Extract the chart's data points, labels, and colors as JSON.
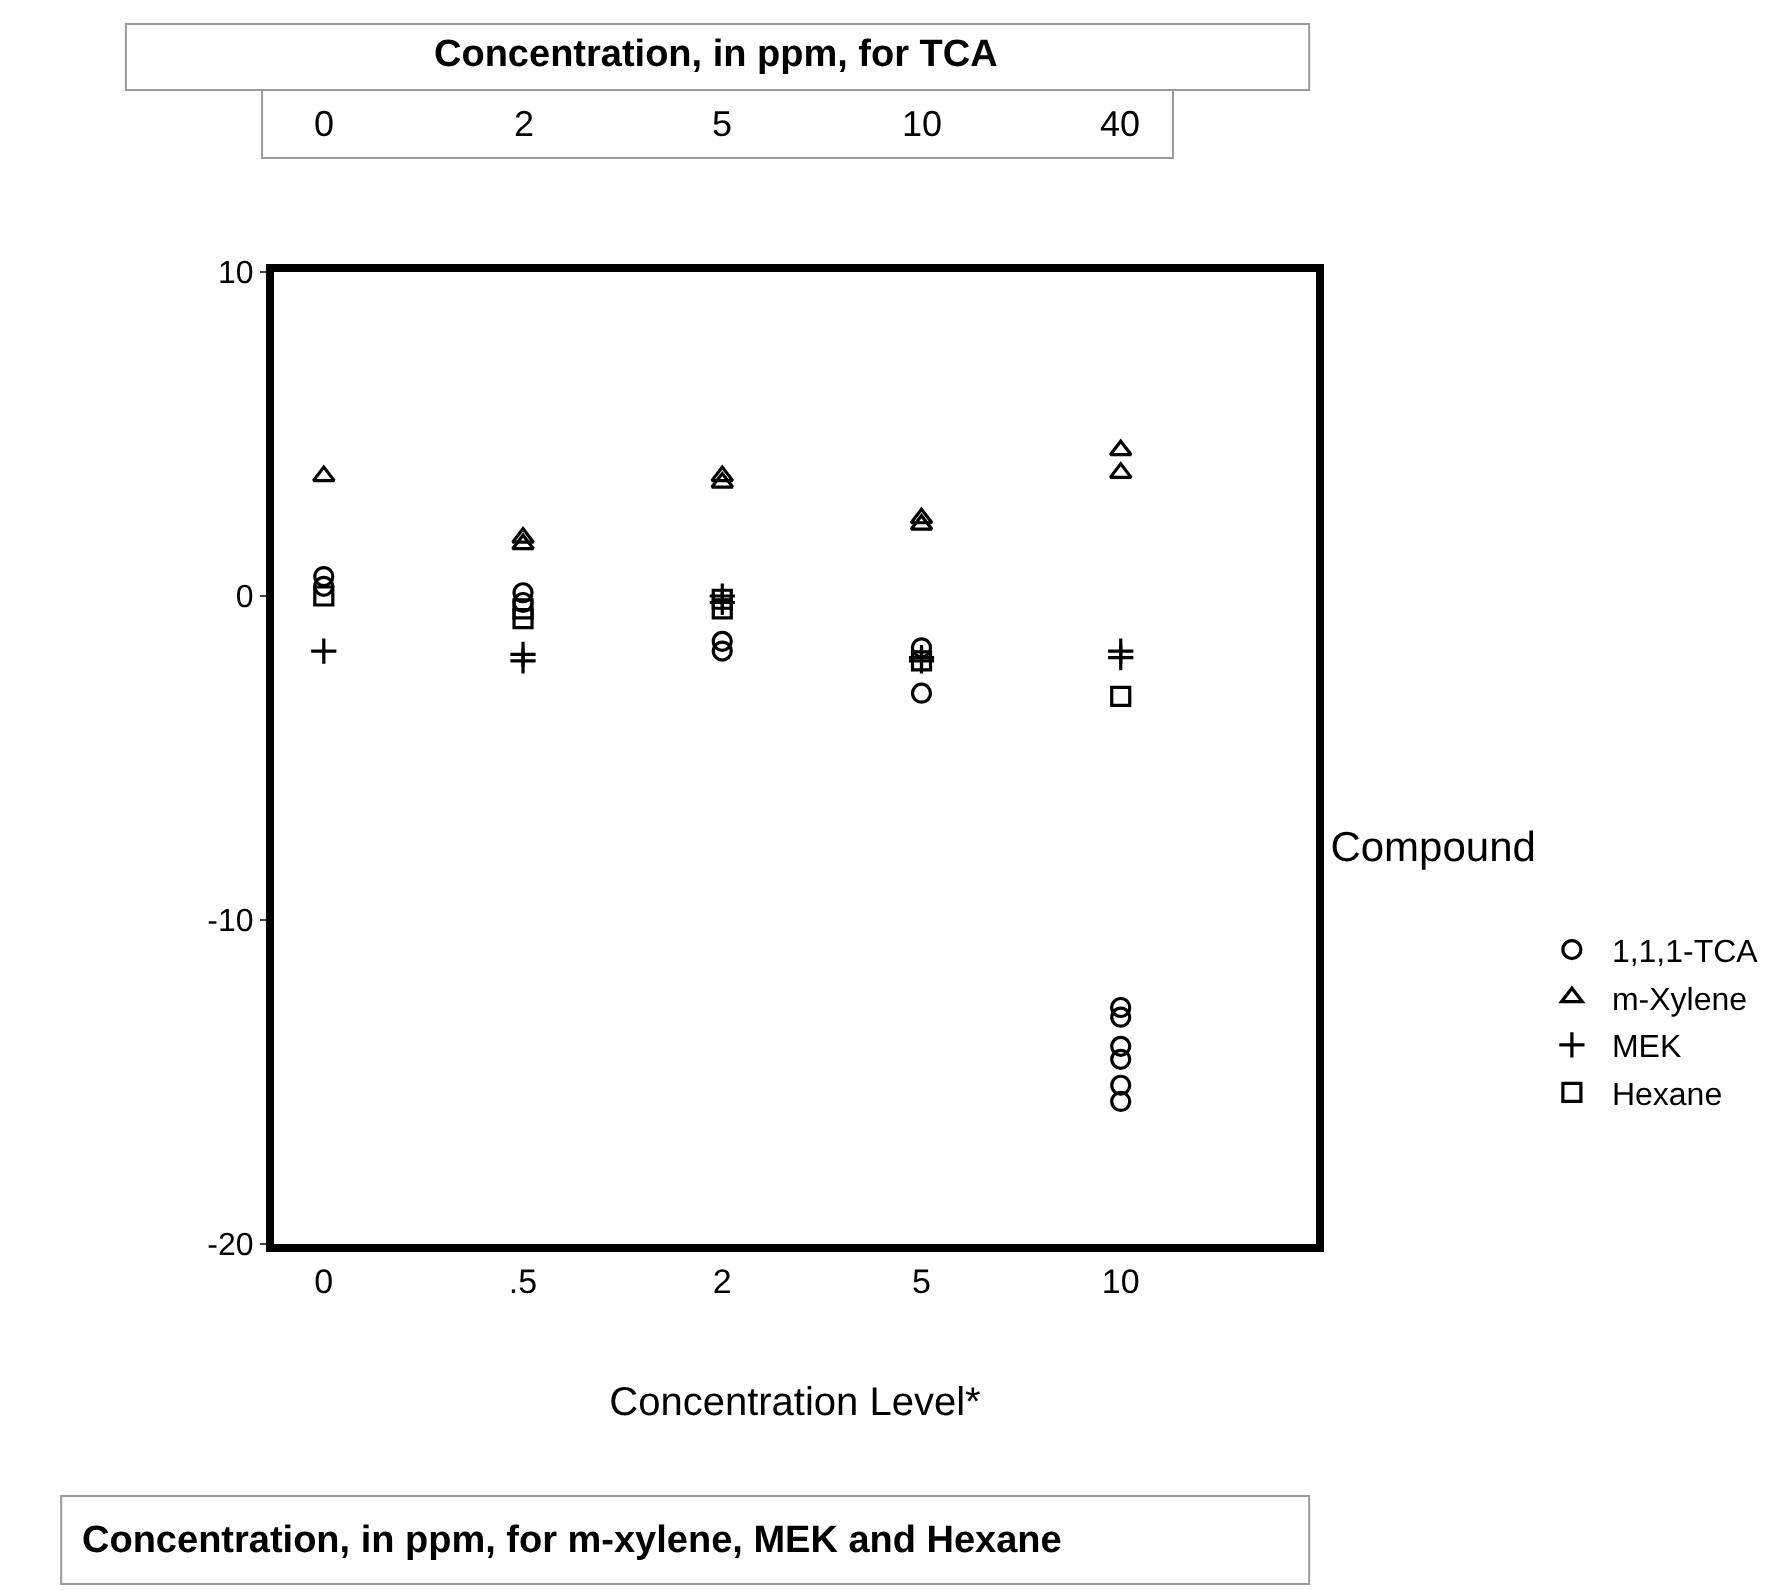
{
  "chart_data": {
    "type": "scatter",
    "xlabel": "Concentration Level*",
    "x2label": "Concentration, in ppm, for TCA",
    "legend_title": "Compound",
    "categories": [
      "0",
      ".5",
      "2",
      "5",
      "10"
    ],
    "series": [
      {
        "name": "1,1,1-TCA",
        "color": "#000000",
        "marker": "circle",
        "x": [
          "0",
          "0",
          ".5",
          ".5",
          "2",
          "2",
          "5",
          "5",
          "10",
          "10",
          "10",
          "10",
          "10",
          "10"
        ],
        "values": [
          0.6,
          0.3,
          0.1,
          -0.2,
          -1.4,
          -1.7,
          -1.6,
          -3.0,
          -12.7,
          -13.0,
          -13.9,
          -14.3,
          -15.1,
          -15.6
        ]
      },
      {
        "name": "m-Xylene",
        "color": "#000000",
        "marker": "triangle",
        "x": [
          "0",
          ".5",
          ".5",
          "2",
          "2",
          "5",
          "5",
          "10",
          "10"
        ],
        "values": [
          3.7,
          1.8,
          1.6,
          3.7,
          3.5,
          2.4,
          2.2,
          4.5,
          3.8
        ]
      },
      {
        "name": "MEK",
        "color": "#000000",
        "marker": "cross",
        "x": [
          "0",
          ".5",
          ".5",
          "2",
          "2",
          "5",
          "5",
          "10",
          "10"
        ],
        "values": [
          -1.7,
          -1.8,
          -2.0,
          0.0,
          -0.2,
          -1.9,
          -2.0,
          -1.7,
          -1.9
        ]
      },
      {
        "name": "Hexane",
        "color": "#000000",
        "marker": "square",
        "x": [
          "0",
          ".5",
          ".5",
          "2",
          "2",
          "5",
          "10"
        ],
        "values": [
          0.0,
          -0.4,
          -0.7,
          -0.1,
          -0.4,
          -2.0,
          -3.1
        ]
      }
    ],
    "ylim": [
      -20,
      10
    ],
    "yticks": [
      -20,
      -10,
      0,
      10
    ],
    "grid": false,
    "legend": "right",
    "annotations": [
      "0",
      "2",
      "5",
      "10",
      "40",
      "Concentration, in ppm, for m-xylene, MEK and Hexane"
    ]
  }
}
